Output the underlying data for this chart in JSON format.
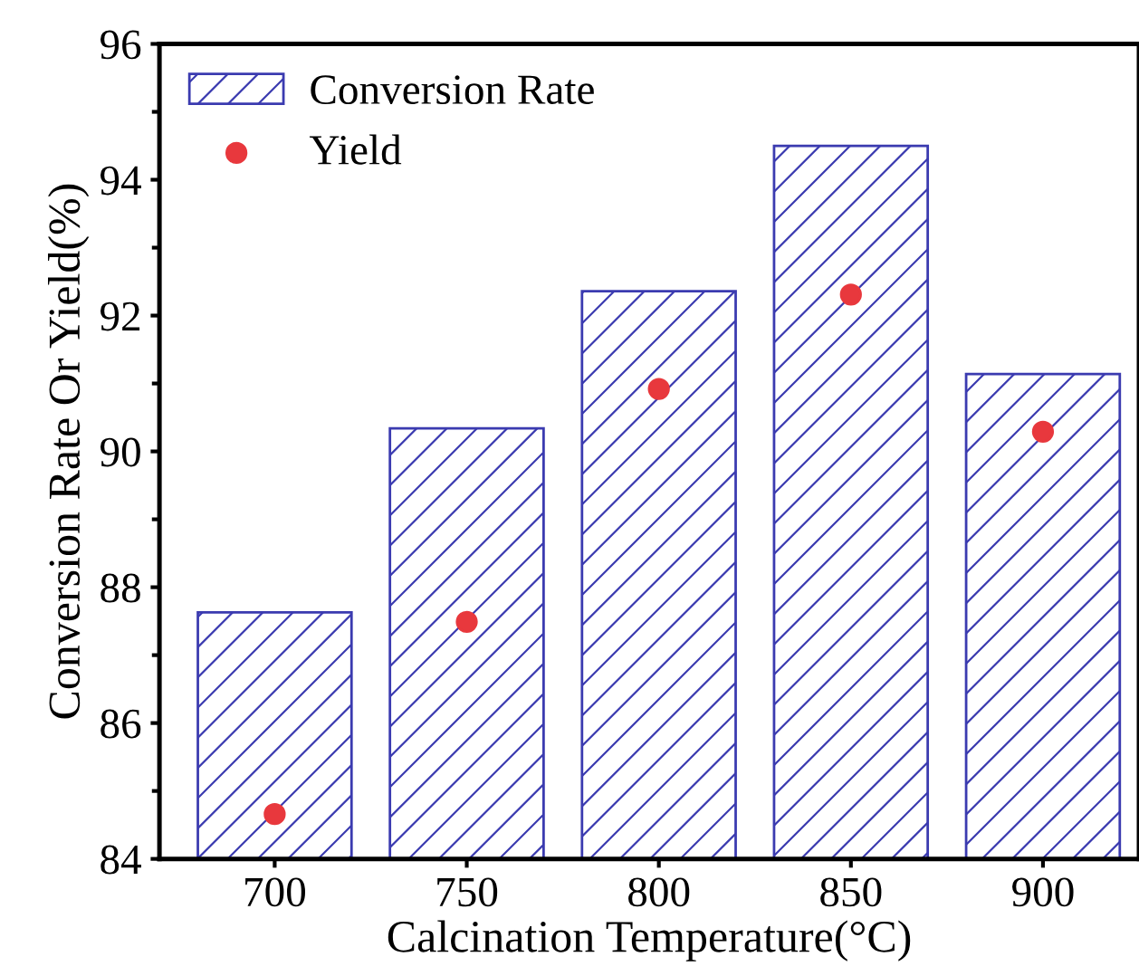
{
  "chart_data": {
    "type": "bar",
    "xlabel": "Calcination Temperature(°C)",
    "ylabel": "Conversion Rate Or Yield(%)",
    "categories": [
      "700",
      "750",
      "800",
      "850",
      "900"
    ],
    "series": [
      {
        "name": "Conversion Rate",
        "color": "#3b3bb0",
        "values": [
          87.63,
          90.34,
          92.36,
          94.5,
          91.14
        ]
      },
      {
        "name": "Yield",
        "type": "scatter",
        "color": "#e8383d",
        "values": [
          84.66,
          87.49,
          90.92,
          92.31,
          90.29
        ],
        "x": [
          "700",
          "750",
          "800",
          "850",
          "900"
        ]
      }
    ],
    "ylim": [
      84,
      96
    ],
    "yticks": [
      84,
      86,
      88,
      90,
      92,
      94,
      96
    ],
    "grid": false,
    "legend": "top left",
    "marker": "circle"
  }
}
